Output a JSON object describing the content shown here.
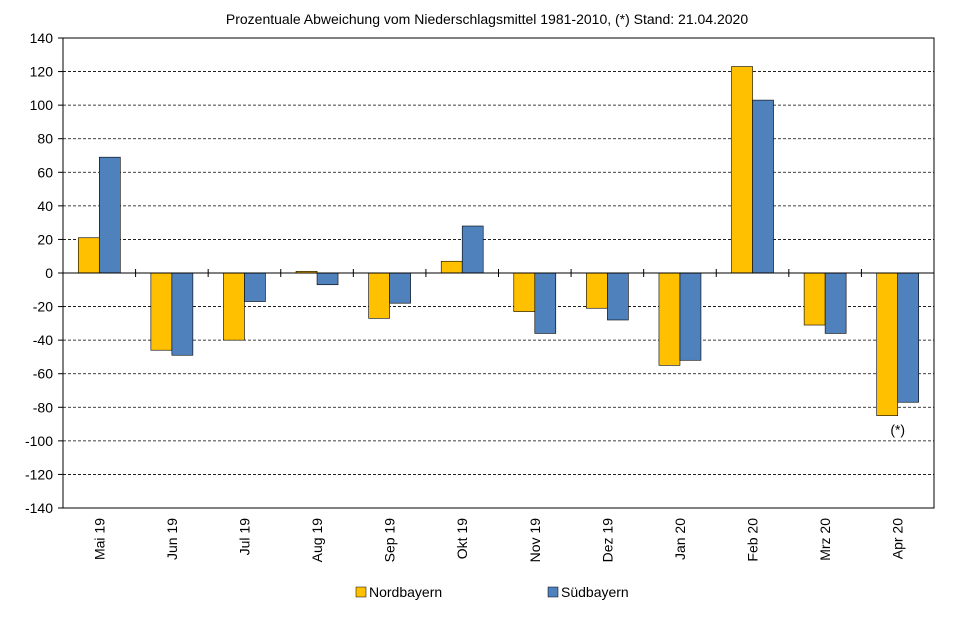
{
  "chart_data": {
    "type": "bar",
    "title": "Prozentuale Abweichung vom Niederschlagsmittel 1981-2010, (*) Stand: 21.04.2020",
    "categories": [
      "Mai 19",
      "Jun 19",
      "Jul 19",
      "Aug 19",
      "Sep 19",
      "Okt 19",
      "Nov 19",
      "Dez 19",
      "Jan 20",
      "Feb 20",
      "Mrz 20",
      "Apr 20"
    ],
    "series": [
      {
        "name": "Nordbayern",
        "color": "#FFC000",
        "values": [
          21,
          -46,
          -40,
          1,
          -27,
          7,
          -23,
          -21,
          -55,
          123,
          -31,
          -85
        ]
      },
      {
        "name": "Südbayern",
        "color": "#4F81BD",
        "values": [
          69,
          -49,
          -17,
          -7,
          -18,
          28,
          -36,
          -28,
          -52,
          103,
          -36,
          -77
        ]
      }
    ],
    "ylim": [
      -140,
      140
    ],
    "yticks": [
      140,
      120,
      100,
      80,
      60,
      40,
      20,
      0,
      -20,
      -40,
      -60,
      -80,
      -100,
      -120,
      -140
    ],
    "grid": "dashed horizontal",
    "legend": "bottom",
    "annotation": {
      "text": "(*)",
      "category": "Apr 20"
    }
  }
}
